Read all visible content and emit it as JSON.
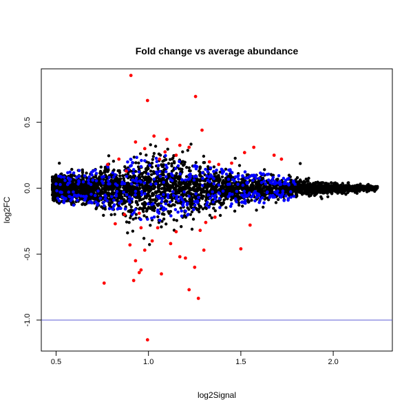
{
  "chart_data": {
    "type": "scatter",
    "title": "Fold change vs average abundance",
    "xlabel": "log2Signal",
    "ylabel": "log2FC",
    "xlim": [
      0.42,
      2.32
    ],
    "ylim": [
      -1.235,
      0.905
    ],
    "xticks": [
      0.5,
      1.0,
      1.5,
      2.0
    ],
    "xtick_labels": [
      "0.5",
      "1.0",
      "1.5",
      "2.0"
    ],
    "yticks": [
      -1.0,
      -0.5,
      0.0,
      0.5
    ],
    "ytick_labels": [
      "-1.0",
      "-0.5",
      "0.0",
      "0.5"
    ],
    "hline": {
      "y": -1.0,
      "color": "#5b5bd6"
    },
    "grid": false,
    "legend": "none",
    "series_colors": {
      "black": "#000000",
      "blue": "#0000ff",
      "red": "#ff0000"
    },
    "red_points": [
      [
        0.905,
        0.855
      ],
      [
        0.995,
        0.665
      ],
      [
        1.255,
        0.695
      ],
      [
        1.17,
        0.325
      ],
      [
        1.03,
        0.395
      ],
      [
        1.09,
        0.275
      ],
      [
        0.93,
        0.35
      ],
      [
        1.06,
        0.22
      ],
      [
        0.88,
        0.13
      ],
      [
        1.29,
        0.44
      ],
      [
        1.38,
        0.18
      ],
      [
        1.45,
        0.19
      ],
      [
        1.52,
        0.27
      ],
      [
        1.57,
        0.31
      ],
      [
        1.33,
        0.2
      ],
      [
        0.78,
        0.18
      ],
      [
        1.15,
        0.25
      ],
      [
        0.98,
        0.3
      ],
      [
        1.68,
        0.25
      ],
      [
        1.72,
        0.22
      ],
      [
        1.22,
        0.31
      ],
      [
        0.84,
        0.22
      ],
      [
        1.1,
        0.37
      ],
      [
        0.96,
        -0.3
      ],
      [
        1.05,
        -0.3
      ],
      [
        0.9,
        -0.43
      ],
      [
        0.98,
        -0.47
      ],
      [
        0.93,
        -0.55
      ],
      [
        0.96,
        -0.62
      ],
      [
        0.95,
        -0.64
      ],
      [
        0.92,
        -0.7
      ],
      [
        0.76,
        -0.72
      ],
      [
        1.07,
        -0.65
      ],
      [
        0.995,
        -1.15
      ],
      [
        1.22,
        -0.77
      ],
      [
        1.27,
        -0.835
      ],
      [
        1.25,
        -0.6
      ],
      [
        1.17,
        -0.52
      ],
      [
        1.2,
        -0.53
      ],
      [
        1.12,
        -0.42
      ],
      [
        1.28,
        -0.32
      ],
      [
        1.31,
        -0.26
      ],
      [
        1.36,
        -0.22
      ],
      [
        1.5,
        -0.46
      ],
      [
        1.55,
        -0.28
      ],
      [
        0.82,
        -0.27
      ],
      [
        0.87,
        -0.2
      ],
      [
        1.3,
        -0.47
      ],
      [
        1.02,
        -0.4
      ],
      [
        1.15,
        -0.33
      ],
      [
        0.95,
        -0.19
      ]
    ]
  }
}
